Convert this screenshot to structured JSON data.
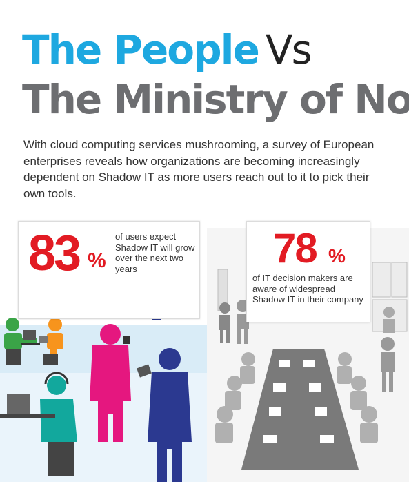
{
  "title": {
    "line1_highlight": "The People",
    "line1_vs": "Vs",
    "line2": "The Ministry of No"
  },
  "intro": "With cloud computing services mushrooming, a survey of European enterprises reveals how organizations are becoming increasingly dependent on Shadow IT as more users reach out to it to pick their own tools.",
  "stat_left": {
    "number": "83",
    "percent_sign": "%",
    "text": "of users expect Shadow IT will grow over the next two years"
  },
  "stat_right": {
    "number": "78",
    "percent_sign": "%",
    "text": "of IT decision makers are aware of widespread Shadow IT in their company"
  },
  "colors": {
    "people_blue": "#1ea8e0",
    "stat_red": "#e21b23",
    "title_grey": "#6d6e71",
    "magenta": "#e5177f",
    "navy": "#2b3990",
    "green": "#3aa447",
    "orange": "#f7941d",
    "teal": "#12a89d"
  }
}
